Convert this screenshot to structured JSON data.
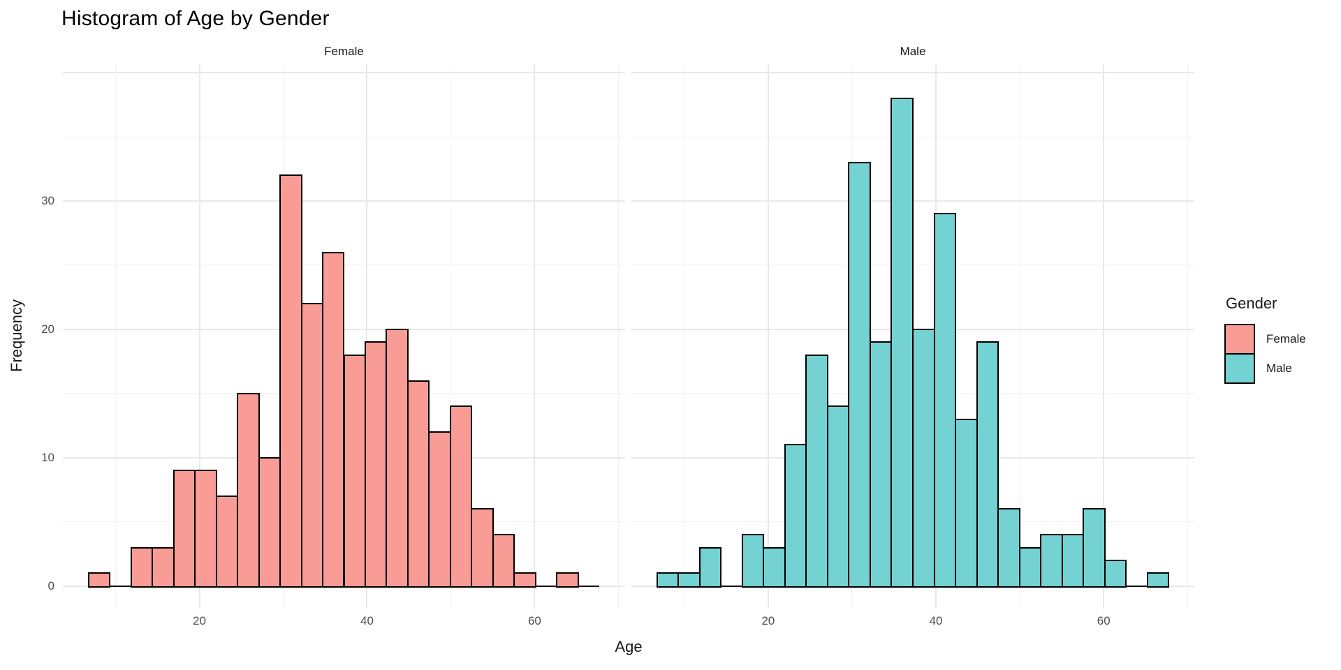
{
  "title": "Histogram of Age by Gender",
  "x_axis": {
    "label": "Age",
    "tick_labels": [
      "20",
      "40",
      "60"
    ]
  },
  "y_axis": {
    "label": "Frequency",
    "tick_labels": [
      "0",
      "10",
      "20",
      "30"
    ]
  },
  "legend": {
    "title": "Gender",
    "entries": [
      "Female",
      "Male"
    ]
  },
  "colors": {
    "female_fill": "#F99C95",
    "male_fill": "#74D2D2",
    "bar_stroke": "#000000",
    "grid_major": "#E8E8E8",
    "grid_minor": "#F2F2F2",
    "tick_text": "#4D4D4D",
    "text": "#1A1A1A"
  },
  "chart_data": {
    "type": "bar",
    "subtype": "faceted-histogram",
    "title": "Histogram of Age by Gender",
    "xlabel": "Age",
    "ylabel": "Frequency",
    "facet_variable": "Gender",
    "legend_title": "Gender",
    "legend_position": "right",
    "grid": true,
    "bin_start": 6.75,
    "bin_width": 2.5417,
    "n_bins": 24,
    "x_ticks": [
      20,
      40,
      60
    ],
    "y_ticks": [
      0,
      10,
      20,
      30
    ],
    "x_major_gridlines": [
      20,
      40,
      60
    ],
    "x_minor_gridlines": [
      10,
      30,
      50,
      70
    ],
    "y_major_gridlines": [
      0,
      10,
      20,
      30,
      40
    ],
    "y_minor_gridlines": [
      5,
      15,
      25,
      35
    ],
    "x_domain": [
      3.7,
      70.8
    ],
    "y_domain": [
      -1.75,
      40.6
    ],
    "facets": [
      {
        "name": "Female",
        "fill": "#F99C95",
        "counts": [
          1,
          0,
          3,
          3,
          9,
          9,
          7,
          15,
          10,
          32,
          22,
          26,
          18,
          19,
          20,
          16,
          12,
          14,
          6,
          4,
          1,
          0,
          1,
          0
        ]
      },
      {
        "name": "Male",
        "fill": "#74D2D2",
        "counts": [
          1,
          1,
          3,
          0,
          4,
          3,
          11,
          18,
          14,
          33,
          19,
          38,
          20,
          29,
          13,
          19,
          6,
          3,
          4,
          4,
          6,
          2,
          0,
          1
        ]
      }
    ]
  }
}
